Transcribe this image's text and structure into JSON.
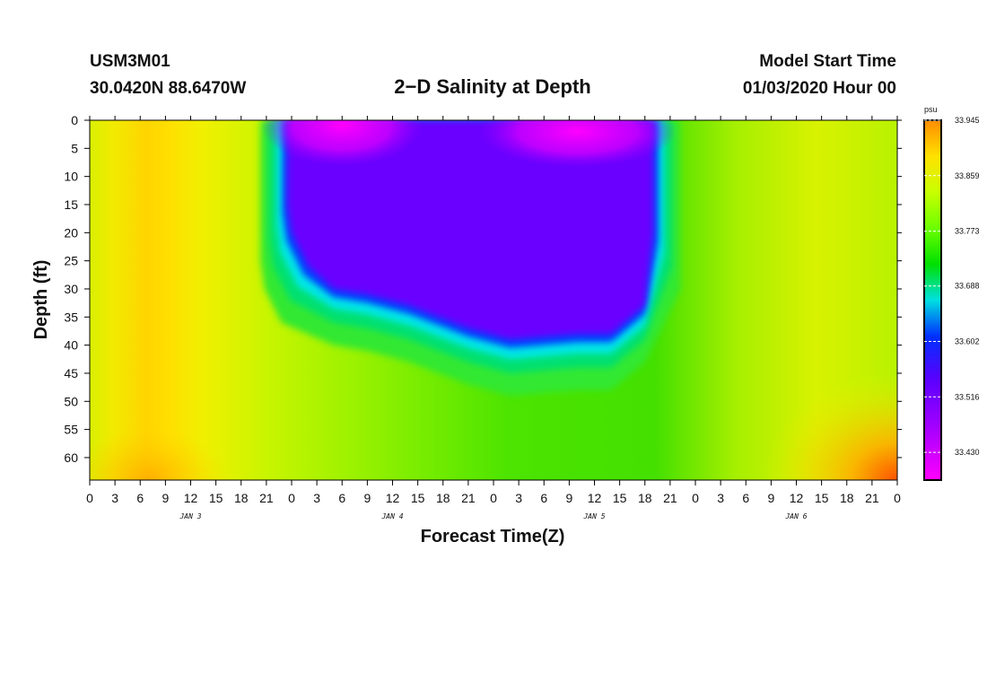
{
  "header": {
    "station_id": "USM3M01",
    "location": "30.0420N 88.6470W",
    "title": "2−D Salinity at Depth",
    "start_label": "Model Start Time",
    "start_value": "01/03/2020 Hour 00"
  },
  "chart_data": {
    "type": "heatmap",
    "title": "2−D Salinity at Depth",
    "xlabel": "Forecast Time(Z)",
    "ylabel": "Depth (ft)",
    "x_tick_labels": [
      "0",
      "3",
      "6",
      "9",
      "12",
      "15",
      "18",
      "21",
      "0",
      "3",
      "6",
      "9",
      "12",
      "15",
      "18",
      "21",
      "0",
      "3",
      "6",
      "9",
      "12",
      "15",
      "18",
      "21",
      "0",
      "3",
      "6",
      "9",
      "12",
      "15",
      "18",
      "21",
      "0"
    ],
    "x_range_hours": [
      0,
      96
    ],
    "day_labels": [
      {
        "label": "JAN 3",
        "hour": 12
      },
      {
        "label": "JAN 4",
        "hour": 36
      },
      {
        "label": "JAN 5",
        "hour": 60
      },
      {
        "label": "JAN 6",
        "hour": 84
      }
    ],
    "y_ticks": [
      0,
      5,
      10,
      15,
      20,
      25,
      30,
      35,
      40,
      45,
      50,
      55,
      60
    ],
    "y_range_ft": [
      0,
      64
    ],
    "colorbar": {
      "unit": "psu",
      "ticks": [
        "33.945",
        "33.859",
        "33.773",
        "33.688",
        "33.602",
        "33.516",
        "33.430"
      ],
      "min": 33.387,
      "max": 33.945
    },
    "low_salinity_core": {
      "description_values": "min ~33.39 psu near surface",
      "top_boundary_hours": [
        23.5,
        67
      ],
      "bottom_depth_ft_by_hour": [
        [
          23.5,
          15
        ],
        [
          24,
          20
        ],
        [
          26,
          26
        ],
        [
          29,
          30
        ],
        [
          33,
          31
        ],
        [
          38,
          33
        ],
        [
          45,
          37
        ],
        [
          50,
          39
        ],
        [
          54,
          38.5
        ],
        [
          58,
          38
        ],
        [
          62,
          38
        ],
        [
          66,
          33
        ],
        [
          67,
          20
        ],
        [
          67,
          0
        ]
      ]
    }
  }
}
